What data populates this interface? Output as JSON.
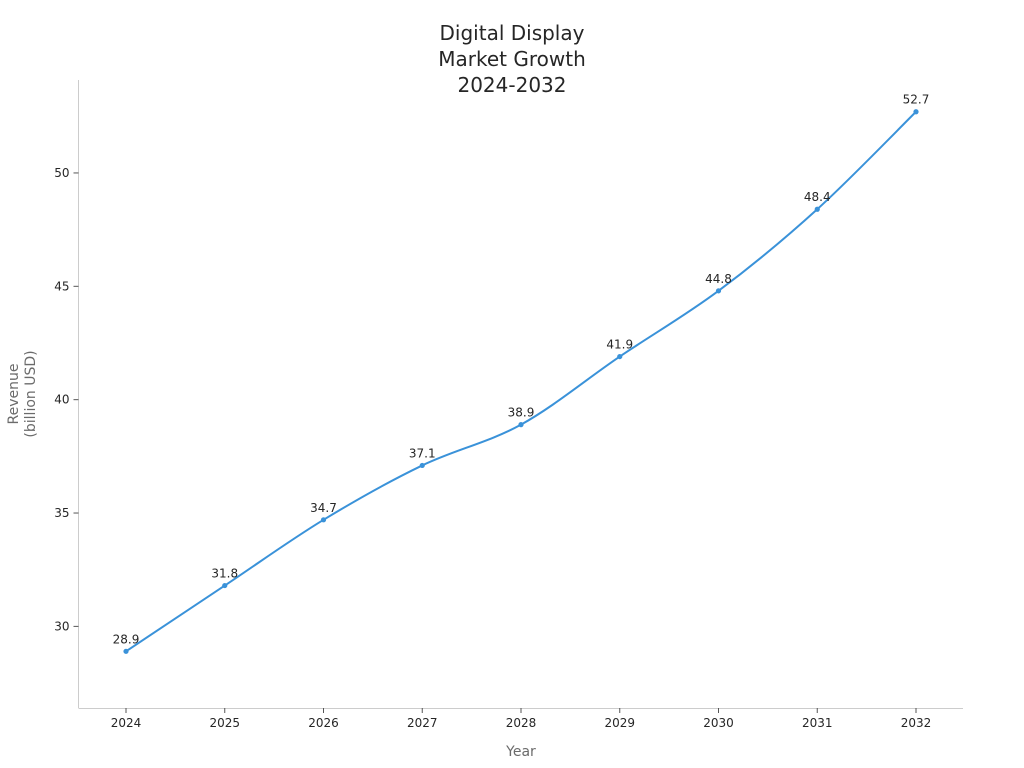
{
  "chart_data": {
    "type": "line",
    "title": [
      "Digital Display",
      "Market Growth",
      "2024-2032"
    ],
    "xlabel": "Year",
    "ylabel": [
      "Revenue",
      "(billion USD)"
    ],
    "categories": [
      "2024",
      "2025",
      "2026",
      "2027",
      "2028",
      "2029",
      "2030",
      "2031",
      "2032"
    ],
    "series": [
      {
        "values": [
          28.9,
          31.8,
          34.7,
          37.1,
          38.9,
          41.9,
          44.8,
          48.4,
          52.7
        ]
      }
    ],
    "data_labels": [
      "28.9",
      "31.8",
      "34.7",
      "37.1",
      "38.9",
      "41.9",
      "44.8",
      "48.4",
      "52.7"
    ],
    "yticks": [
      30,
      35,
      40,
      45,
      50
    ],
    "ytick_labels": [
      "30",
      "35",
      "40",
      "45",
      "50"
    ],
    "ylim": [
      26.4,
      54.1
    ],
    "grid": false,
    "legend": "none",
    "line_color": "#3a92d9"
  }
}
